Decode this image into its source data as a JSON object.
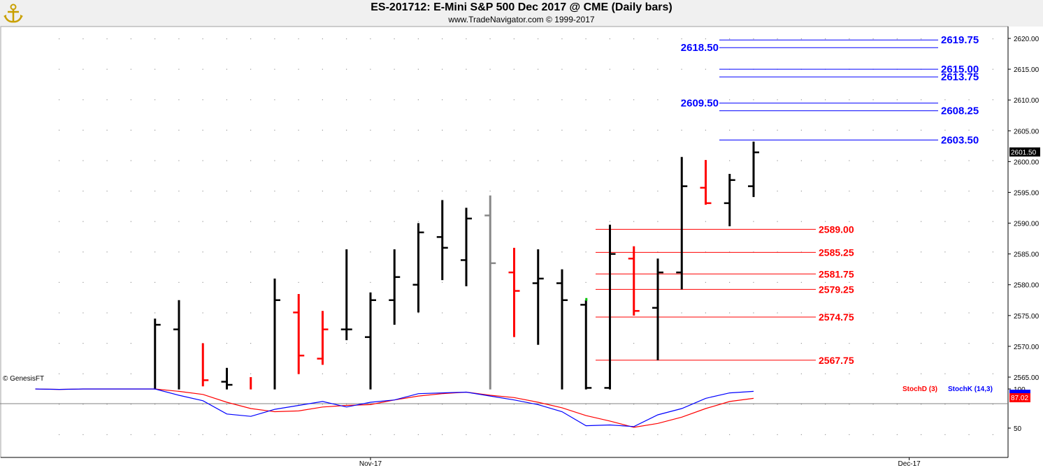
{
  "header": {
    "title": "ES-201712:  E-Mini S&P 500 Dec 2017 @ CME  (Daily bars)",
    "subtitle": "www.TradeNavigator.com © 1999-2017",
    "watermark": "© GenesisFT",
    "logo_icon": "anchor-icon"
  },
  "colors": {
    "up_bar": "#000000",
    "down_bar": "#ff0000",
    "inside_bar": "#888888",
    "resistance": "#0000ff",
    "support": "#ff0000",
    "stoch_k": "#0000ff",
    "stoch_d": "#ff0000"
  },
  "chart_data": [
    {
      "type": "ohlc",
      "title": "ES-201712:  E-Mini S&P 500 Dec 2017 @ CME  (Daily bars)",
      "x_ticks": [
        {
          "label": "Nov-17",
          "index": 14
        },
        {
          "label": "Dec-17",
          "index": 36.5
        }
      ],
      "y_ticks": [
        "2620.00",
        "2615.00",
        "2610.00",
        "2605.00",
        "2600.00",
        "2595.00",
        "2590.00",
        "2585.00",
        "2580.00",
        "2575.00",
        "2570.00",
        "2565.00"
      ],
      "ylim": [
        2563,
        2622
      ],
      "last_price": "2601.50",
      "bars": [
        {
          "i": 5,
          "o": null,
          "h": 2574.5,
          "l": 2563,
          "c": 2573.5,
          "color": "up"
        },
        {
          "i": 6,
          "o": 2572.75,
          "h": 2577.5,
          "l": 2563,
          "c": null,
          "color": "up"
        },
        {
          "i": 7,
          "o": null,
          "h": 2570.5,
          "l": 2563.5,
          "c": 2564.5,
          "color": "down"
        },
        {
          "i": 8,
          "o": 2564.25,
          "h": 2566.5,
          "l": 2563,
          "c": 2563.75,
          "color": "up"
        },
        {
          "i": 9,
          "o": null,
          "h": 2565,
          "l": 2563,
          "c": null,
          "color": "down"
        },
        {
          "i": 10,
          "o": null,
          "h": 2581,
          "l": 2563,
          "c": 2577.5,
          "color": "up"
        },
        {
          "i": 11,
          "o": 2575.5,
          "h": 2578.5,
          "l": 2565.5,
          "c": 2568.5,
          "color": "down"
        },
        {
          "i": 12,
          "o": 2568,
          "h": 2575.75,
          "l": 2567,
          "c": 2572.75,
          "color": "down"
        },
        {
          "i": 13,
          "o": 2572.75,
          "h": 2585.75,
          "l": 2571,
          "c": 2572.75,
          "color": "up"
        },
        {
          "i": 14,
          "o": 2571.5,
          "h": 2578.75,
          "l": 2563,
          "c": 2577.5,
          "color": "up"
        },
        {
          "i": 15,
          "o": 2577.5,
          "h": 2585.75,
          "l": 2573.5,
          "c": 2581.25,
          "color": "up"
        },
        {
          "i": 16,
          "o": 2580,
          "h": 2590,
          "l": 2575.5,
          "c": 2588.5,
          "color": "up"
        },
        {
          "i": 17,
          "o": 2587.75,
          "h": 2593.75,
          "l": 2580.75,
          "c": 2586,
          "color": "up"
        },
        {
          "i": 18,
          "o": 2584,
          "h": 2592.5,
          "l": 2579.75,
          "c": 2590.75,
          "color": "up"
        },
        {
          "i": 19,
          "o": 2591.25,
          "h": 2594.5,
          "l": 2563,
          "c": 2583.5,
          "color": "inside"
        },
        {
          "i": 20,
          "o": 2582,
          "h": 2586,
          "l": 2571.5,
          "c": 2579,
          "color": "down"
        },
        {
          "i": 21,
          "o": 2580.25,
          "h": 2585.75,
          "l": 2570.25,
          "c": 2581,
          "color": "up"
        },
        {
          "i": 22,
          "o": 2580.25,
          "h": 2582.5,
          "l": 2563,
          "c": 2577.5,
          "color": "up"
        },
        {
          "i": 23,
          "o": 2576.75,
          "h": 2577.5,
          "l": 2563,
          "c": 2563.25,
          "color": "up"
        },
        {
          "i": 24,
          "o": 2563.25,
          "h": 2589.75,
          "l": 2563,
          "c": 2585,
          "color": "up"
        },
        {
          "i": 25,
          "o": 2584.25,
          "h": 2586.25,
          "l": 2575,
          "c": 2575.75,
          "color": "down"
        },
        {
          "i": 26,
          "o": 2576.25,
          "h": 2584.25,
          "l": 2567.75,
          "c": 2582,
          "color": "up"
        },
        {
          "i": 27,
          "o": 2582,
          "h": 2600.75,
          "l": 2579.25,
          "c": 2596,
          "color": "up"
        },
        {
          "i": 28,
          "o": 2595.75,
          "h": 2600.25,
          "l": 2593,
          "c": 2593.25,
          "color": "down"
        },
        {
          "i": 29,
          "o": 2593.25,
          "h": 2598,
          "l": 2589.5,
          "c": 2597,
          "color": "up"
        },
        {
          "i": 30,
          "o": 2596,
          "h": 2603.25,
          "l": 2594.25,
          "c": 2601.5,
          "color": "up"
        }
      ],
      "resistance_levels": [
        {
          "label": "2619.75",
          "value": 2619.75,
          "label_side": "right"
        },
        {
          "label": "2618.50",
          "value": 2618.5,
          "label_side": "left"
        },
        {
          "label": "2615.00",
          "value": 2615.0,
          "label_side": "right"
        },
        {
          "label": "2613.75",
          "value": 2613.75,
          "label_side": "right"
        },
        {
          "label": "2609.50",
          "value": 2609.5,
          "label_side": "left"
        },
        {
          "label": "2608.25",
          "value": 2608.25,
          "label_side": "right"
        },
        {
          "label": "2603.50",
          "value": 2603.5,
          "label_side": "right"
        }
      ],
      "support_levels": [
        {
          "label": "2589.00",
          "value": 2589.0
        },
        {
          "label": "2585.25",
          "value": 2585.25
        },
        {
          "label": "2581.75",
          "value": 2581.75
        },
        {
          "label": "2579.25",
          "value": 2579.25
        },
        {
          "label": "2574.75",
          "value": 2574.75
        },
        {
          "label": "2567.75",
          "value": 2567.75
        }
      ]
    },
    {
      "type": "line",
      "title": "",
      "series": [
        {
          "name": "StochD (3)",
          "color": "#ff0000",
          "values": [
            [
              0,
              100
            ],
            [
              1,
              99.5
            ],
            [
              2,
              100
            ],
            [
              3,
              100
            ],
            [
              4,
              100
            ],
            [
              5,
              100
            ],
            [
              6,
              97
            ],
            [
              7,
              93
            ],
            [
              8,
              83
            ],
            [
              9,
              75
            ],
            [
              10,
              71
            ],
            [
              11,
              72
            ],
            [
              12,
              77
            ],
            [
              13,
              79
            ],
            [
              14,
              80
            ],
            [
              15,
              86
            ],
            [
              16,
              91
            ],
            [
              17,
              94
            ],
            [
              18,
              96
            ],
            [
              19,
              92
            ],
            [
              20,
              89
            ],
            [
              21,
              83
            ],
            [
              22,
              76
            ],
            [
              23,
              66
            ],
            [
              24,
              59
            ],
            [
              25,
              51
            ],
            [
              26,
              56
            ],
            [
              27,
              64
            ],
            [
              28,
              75
            ],
            [
              29,
              84
            ],
            [
              30,
              88
            ]
          ]
        },
        {
          "name": "StochK (14,3)",
          "color": "#0000ff",
          "values": [
            [
              0,
              100
            ],
            [
              1,
              99.5
            ],
            [
              2,
              100
            ],
            [
              3,
              100
            ],
            [
              4,
              100
            ],
            [
              5,
              100
            ],
            [
              6,
              92
            ],
            [
              7,
              85
            ],
            [
              8,
              68
            ],
            [
              9,
              65
            ],
            [
              10,
              74
            ],
            [
              11,
              79
            ],
            [
              12,
              84
            ],
            [
              13,
              77
            ],
            [
              14,
              83
            ],
            [
              15,
              86
            ],
            [
              16,
              94
            ],
            [
              17,
              95
            ],
            [
              18,
              96
            ],
            [
              19,
              91
            ],
            [
              20,
              86
            ],
            [
              21,
              80
            ],
            [
              22,
              71
            ],
            [
              23,
              53
            ],
            [
              24,
              54
            ],
            [
              25,
              52
            ],
            [
              26,
              67
            ],
            [
              27,
              75
            ],
            [
              28,
              88
            ],
            [
              29,
              95
            ],
            [
              30,
              97
            ]
          ]
        }
      ],
      "y_ticks": [
        "100",
        "50"
      ],
      "ylim": [
        30,
        110
      ],
      "last_value": "87.02",
      "reference_value": 80
    }
  ]
}
